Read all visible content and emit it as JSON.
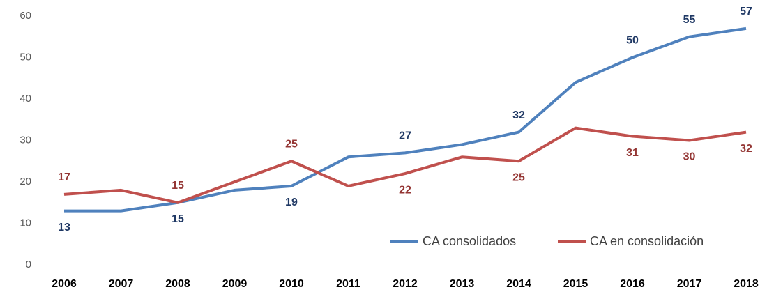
{
  "chart_data": {
    "type": "line",
    "categories": [
      "2006",
      "2007",
      "2008",
      "2009",
      "2010",
      "2011",
      "2012",
      "2013",
      "2014",
      "2015",
      "2016",
      "2017",
      "2018"
    ],
    "series": [
      {
        "name": "CA consolidados",
        "color": "#4f81bd",
        "label_color": "#1f3864",
        "values": [
          13,
          13,
          15,
          18,
          19,
          26,
          27,
          29,
          32,
          44,
          50,
          55,
          57
        ],
        "value_labels": [
          "13",
          null,
          "15",
          null,
          "19",
          null,
          "27",
          null,
          "32",
          null,
          "50",
          "55",
          "57"
        ]
      },
      {
        "name": "CA en consolidación",
        "color": "#c0504d",
        "label_color": "#943634",
        "values": [
          17,
          18,
          15,
          20,
          25,
          19,
          22,
          26,
          25,
          33,
          31,
          30,
          32
        ],
        "value_labels": [
          "17",
          null,
          "15",
          null,
          "25",
          null,
          "22",
          null,
          "25",
          null,
          "31",
          "30",
          "32"
        ]
      }
    ],
    "ylim": [
      0,
      60
    ],
    "yticks": [
      0,
      10,
      20,
      30,
      40,
      50,
      60
    ],
    "grid": false,
    "legend": "bottom-right"
  }
}
